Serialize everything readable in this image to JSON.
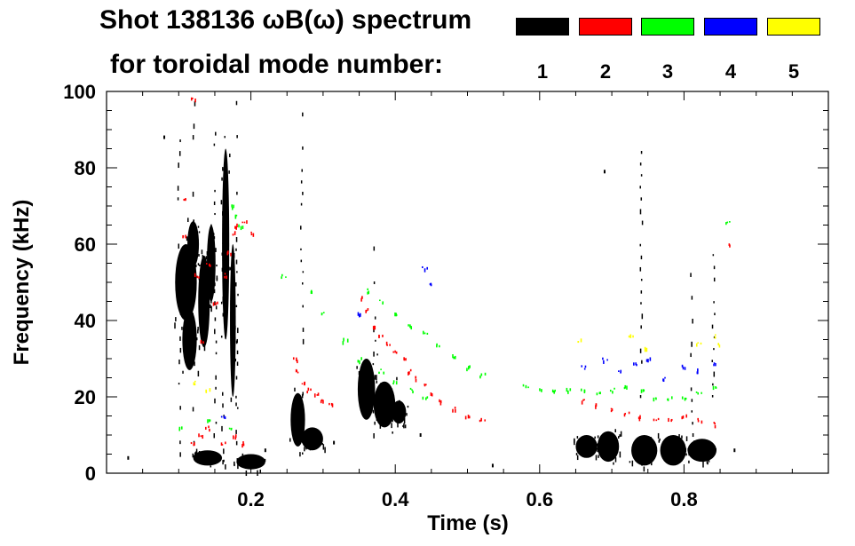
{
  "chart_data": {
    "type": "scatter",
    "title_line1": "Shot 138136 ωB(ω) spectrum",
    "title_line2": "for toroidal mode number:",
    "xlabel": "Time (s)",
    "ylabel": "Frequency (kHz)",
    "xlim": [
      0.0,
      1.0
    ],
    "ylim": [
      0,
      100
    ],
    "xticks": [
      {
        "value": 0.2,
        "label": "0.2"
      },
      {
        "value": 0.4,
        "label": "0.4"
      },
      {
        "value": 0.6,
        "label": "0.6"
      },
      {
        "value": 0.8,
        "label": "0.8"
      }
    ],
    "yticks": [
      {
        "value": 0,
        "label": "0"
      },
      {
        "value": 20,
        "label": "20"
      },
      {
        "value": 40,
        "label": "40"
      },
      {
        "value": 60,
        "label": "60"
      },
      {
        "value": 80,
        "label": "80"
      },
      {
        "value": 100,
        "label": "100"
      }
    ],
    "legend_placement": "top",
    "series": [
      {
        "name": "1",
        "color": "#000000",
        "blobs": [
          {
            "x": 0.11,
            "y": 50,
            "rx": 0.015,
            "ry": 10
          },
          {
            "x": 0.115,
            "y": 35,
            "rx": 0.01,
            "ry": 8
          },
          {
            "x": 0.12,
            "y": 60,
            "rx": 0.008,
            "ry": 6
          },
          {
            "x": 0.135,
            "y": 45,
            "rx": 0.008,
            "ry": 12
          },
          {
            "x": 0.145,
            "y": 55,
            "rx": 0.006,
            "ry": 10
          },
          {
            "x": 0.165,
            "y": 60,
            "rx": 0.005,
            "ry": 25
          },
          {
            "x": 0.175,
            "y": 40,
            "rx": 0.004,
            "ry": 20
          },
          {
            "x": 0.2,
            "y": 3,
            "rx": 0.02,
            "ry": 2
          },
          {
            "x": 0.14,
            "y": 4,
            "rx": 0.02,
            "ry": 2
          },
          {
            "x": 0.265,
            "y": 14,
            "rx": 0.01,
            "ry": 7
          },
          {
            "x": 0.285,
            "y": 9,
            "rx": 0.015,
            "ry": 3
          },
          {
            "x": 0.36,
            "y": 22,
            "rx": 0.012,
            "ry": 8
          },
          {
            "x": 0.385,
            "y": 18,
            "rx": 0.015,
            "ry": 6
          },
          {
            "x": 0.405,
            "y": 16,
            "rx": 0.01,
            "ry": 3
          },
          {
            "x": 0.665,
            "y": 7,
            "rx": 0.015,
            "ry": 3
          },
          {
            "x": 0.695,
            "y": 7,
            "rx": 0.015,
            "ry": 4
          },
          {
            "x": 0.745,
            "y": 6,
            "rx": 0.018,
            "ry": 4
          },
          {
            "x": 0.785,
            "y": 6,
            "rx": 0.018,
            "ry": 4
          },
          {
            "x": 0.825,
            "y": 6,
            "rx": 0.02,
            "ry": 3
          }
        ],
        "streaks": [
          {
            "x": 0.1,
            "y0": 2,
            "y1": 90
          },
          {
            "x": 0.12,
            "y0": 5,
            "y1": 100
          },
          {
            "x": 0.15,
            "y0": 10,
            "y1": 95
          },
          {
            "x": 0.16,
            "y0": 3,
            "y1": 80
          },
          {
            "x": 0.18,
            "y0": 2,
            "y1": 100
          },
          {
            "x": 0.27,
            "y0": 5,
            "y1": 97
          },
          {
            "x": 0.37,
            "y0": 10,
            "y1": 62
          },
          {
            "x": 0.74,
            "y0": 20,
            "y1": 87
          },
          {
            "x": 0.81,
            "y0": 10,
            "y1": 55
          },
          {
            "x": 0.84,
            "y0": 20,
            "y1": 60
          }
        ],
        "dots": [
          {
            "x": 0.03,
            "y": 4
          },
          {
            "x": 0.08,
            "y": 88
          },
          {
            "x": 0.22,
            "y": 6
          },
          {
            "x": 0.315,
            "y": 8
          },
          {
            "x": 0.69,
            "y": 79
          },
          {
            "x": 0.535,
            "y": 2
          },
          {
            "x": 0.87,
            "y": 6
          },
          {
            "x": 0.435,
            "y": 10
          }
        ]
      },
      {
        "name": "2",
        "color": "#ff0000",
        "points": [
          [
            0.105,
            62
          ],
          [
            0.11,
            72
          ],
          [
            0.12,
            98
          ],
          [
            0.125,
            52
          ],
          [
            0.13,
            35
          ],
          [
            0.14,
            55
          ],
          [
            0.15,
            45
          ],
          [
            0.165,
            52
          ],
          [
            0.17,
            58
          ],
          [
            0.175,
            63
          ],
          [
            0.18,
            65
          ],
          [
            0.19,
            66
          ],
          [
            0.2,
            63
          ],
          [
            0.12,
            8
          ],
          [
            0.13,
            10
          ],
          [
            0.14,
            12
          ],
          [
            0.16,
            8
          ],
          [
            0.175,
            10
          ],
          [
            0.19,
            8
          ],
          [
            0.26,
            30
          ],
          [
            0.265,
            27
          ],
          [
            0.27,
            24
          ],
          [
            0.28,
            22
          ],
          [
            0.29,
            21
          ],
          [
            0.3,
            19
          ],
          [
            0.31,
            18
          ],
          [
            0.35,
            46
          ],
          [
            0.36,
            43
          ],
          [
            0.37,
            39
          ],
          [
            0.38,
            36
          ],
          [
            0.39,
            34
          ],
          [
            0.4,
            32
          ],
          [
            0.41,
            30
          ],
          [
            0.42,
            27
          ],
          [
            0.43,
            25
          ],
          [
            0.44,
            23
          ],
          [
            0.45,
            21
          ],
          [
            0.46,
            19
          ],
          [
            0.48,
            17
          ],
          [
            0.5,
            15
          ],
          [
            0.52,
            14
          ],
          [
            0.66,
            19
          ],
          [
            0.68,
            18
          ],
          [
            0.7,
            17
          ],
          [
            0.72,
            16
          ],
          [
            0.74,
            15
          ],
          [
            0.76,
            14
          ],
          [
            0.78,
            14
          ],
          [
            0.8,
            15
          ],
          [
            0.82,
            14
          ],
          [
            0.84,
            13
          ],
          [
            0.86,
            60
          ]
        ]
      },
      {
        "name": "3",
        "color": "#00ff00",
        "points": [
          [
            0.175,
            70
          ],
          [
            0.18,
            68
          ],
          [
            0.185,
            65
          ],
          [
            0.1,
            12
          ],
          [
            0.14,
            14
          ],
          [
            0.17,
            12
          ],
          [
            0.245,
            52
          ],
          [
            0.28,
            48
          ],
          [
            0.3,
            42
          ],
          [
            0.33,
            35
          ],
          [
            0.35,
            30
          ],
          [
            0.38,
            27
          ],
          [
            0.4,
            24
          ],
          [
            0.42,
            22
          ],
          [
            0.44,
            20
          ],
          [
            0.36,
            48
          ],
          [
            0.38,
            45
          ],
          [
            0.4,
            42
          ],
          [
            0.42,
            39
          ],
          [
            0.44,
            37
          ],
          [
            0.46,
            34
          ],
          [
            0.48,
            31
          ],
          [
            0.5,
            28
          ],
          [
            0.52,
            26
          ],
          [
            0.58,
            23
          ],
          [
            0.6,
            22
          ],
          [
            0.62,
            22
          ],
          [
            0.64,
            22
          ],
          [
            0.66,
            22
          ],
          [
            0.68,
            21
          ],
          [
            0.7,
            22
          ],
          [
            0.72,
            23
          ],
          [
            0.74,
            22
          ],
          [
            0.76,
            20
          ],
          [
            0.78,
            20
          ],
          [
            0.8,
            20
          ],
          [
            0.82,
            21
          ],
          [
            0.84,
            23
          ],
          [
            0.86,
            66
          ]
        ]
      },
      {
        "name": "4",
        "color": "#0000ff",
        "points": [
          [
            0.16,
            15
          ],
          [
            0.35,
            42
          ],
          [
            0.44,
            54
          ],
          [
            0.45,
            50
          ],
          [
            0.66,
            28
          ],
          [
            0.69,
            30
          ],
          [
            0.71,
            27
          ],
          [
            0.73,
            29
          ],
          [
            0.75,
            30
          ],
          [
            0.77,
            25
          ],
          [
            0.8,
            28
          ],
          [
            0.82,
            27
          ],
          [
            0.84,
            29
          ]
        ]
      },
      {
        "name": "5",
        "color": "#ffff00",
        "points": [
          [
            0.12,
            24
          ],
          [
            0.14,
            22
          ],
          [
            0.655,
            35
          ],
          [
            0.725,
            36
          ],
          [
            0.745,
            33
          ],
          [
            0.82,
            34
          ],
          [
            0.84,
            36
          ],
          [
            0.85,
            34
          ]
        ]
      }
    ]
  }
}
